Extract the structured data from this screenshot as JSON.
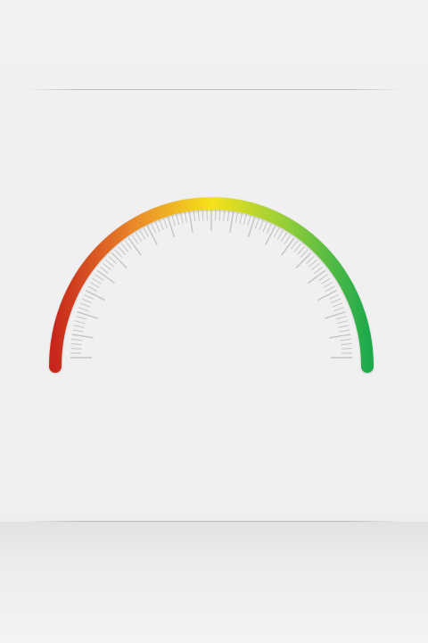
{
  "gauge": {
    "min": 0,
    "max": 100,
    "major_tick_every": 5,
    "minor_tick_every": 1,
    "gradient_stops": [
      "#c8281c",
      "#e9882a",
      "#f6e21c",
      "#8fcd3a",
      "#1faa4c"
    ],
    "tick_color": "#c4c4c4"
  }
}
